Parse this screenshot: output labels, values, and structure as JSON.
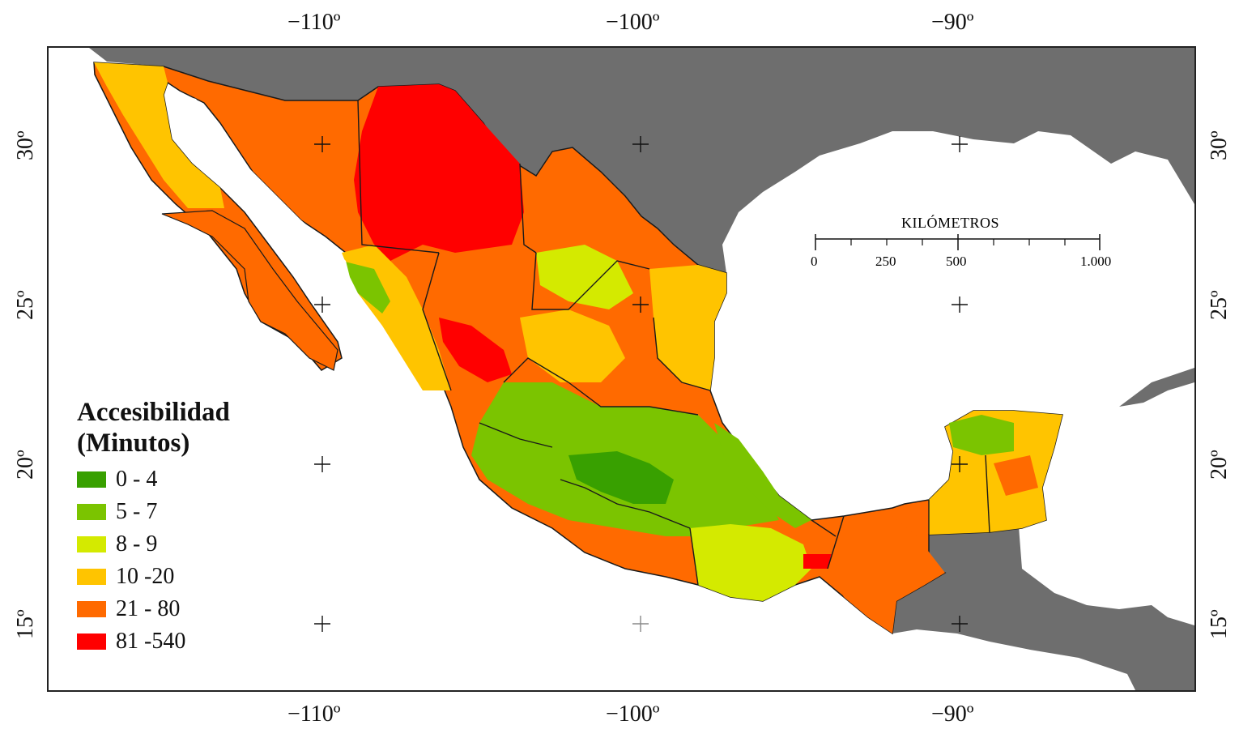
{
  "map": {
    "colors": {
      "land_other": "#6e6e6e",
      "water": "#ffffff",
      "border": "#1a1a1a"
    }
  },
  "axes": {
    "longitude_labels": [
      "−110º",
      "−100º",
      "−90º"
    ],
    "latitude_labels": [
      "30º",
      "25º",
      "20º",
      "15º"
    ]
  },
  "legend": {
    "title_line1": "Accesibilidad",
    "title_line2": "(Minutos)",
    "items": [
      {
        "label": "0 - 4",
        "color": "#38a000"
      },
      {
        "label": "5 - 7",
        "color": "#7bc400"
      },
      {
        "label": "8 - 9",
        "color": "#d4ea00"
      },
      {
        "label": "10 -20",
        "color": "#ffc400"
      },
      {
        "label": "21 - 80",
        "color": "#ff6a00"
      },
      {
        "label": "81 -540",
        "color": "#ff0000"
      }
    ]
  },
  "scalebar": {
    "title": "KILÓMETROS",
    "labels": [
      "0",
      "250",
      "500",
      "1.000"
    ]
  }
}
